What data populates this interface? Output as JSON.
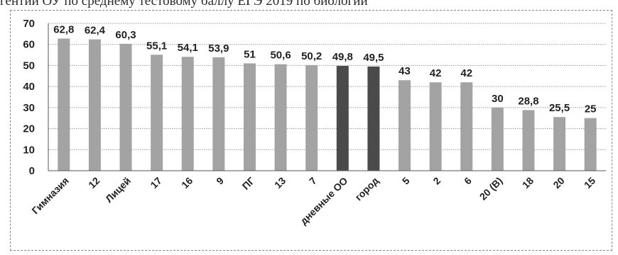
{
  "caption": "гентии ОУ по среднему тестовому баллу ЕГЭ 2019 по биологии",
  "colors": {
    "bar": "#a3a3a3",
    "bar_highlight": "#4a4a4a",
    "grid": "#9a9a9a",
    "axis": "#555555"
  },
  "chart_data": {
    "type": "bar",
    "title": "",
    "xlabel": "",
    "ylabel": "",
    "ylim": [
      0,
      70
    ],
    "yticks": [
      0,
      10,
      20,
      30,
      40,
      50,
      60,
      70
    ],
    "grid": true,
    "categories": [
      "Гимназия",
      "12",
      "Лицей",
      "17",
      "16",
      "9",
      "ПГ",
      "13",
      "7",
      "дневные ОО",
      "город",
      "5",
      "2",
      "6",
      "20 (В)",
      "18",
      "20",
      "15"
    ],
    "values": [
      62.8,
      62.4,
      60.3,
      55.1,
      54.1,
      53.9,
      51,
      50.6,
      50.2,
      49.8,
      49.5,
      43,
      42,
      42,
      30,
      28.8,
      25.5,
      25
    ],
    "value_labels": [
      "62,8",
      "62,4",
      "60,3",
      "55,1",
      "54,1",
      "53,9",
      "51",
      "50,6",
      "50,2",
      "49,8",
      "49,5",
      "43",
      "42",
      "42",
      "30",
      "28,8",
      "25,5",
      "25"
    ],
    "highlighted": [
      "дневные ОО",
      "город"
    ]
  }
}
